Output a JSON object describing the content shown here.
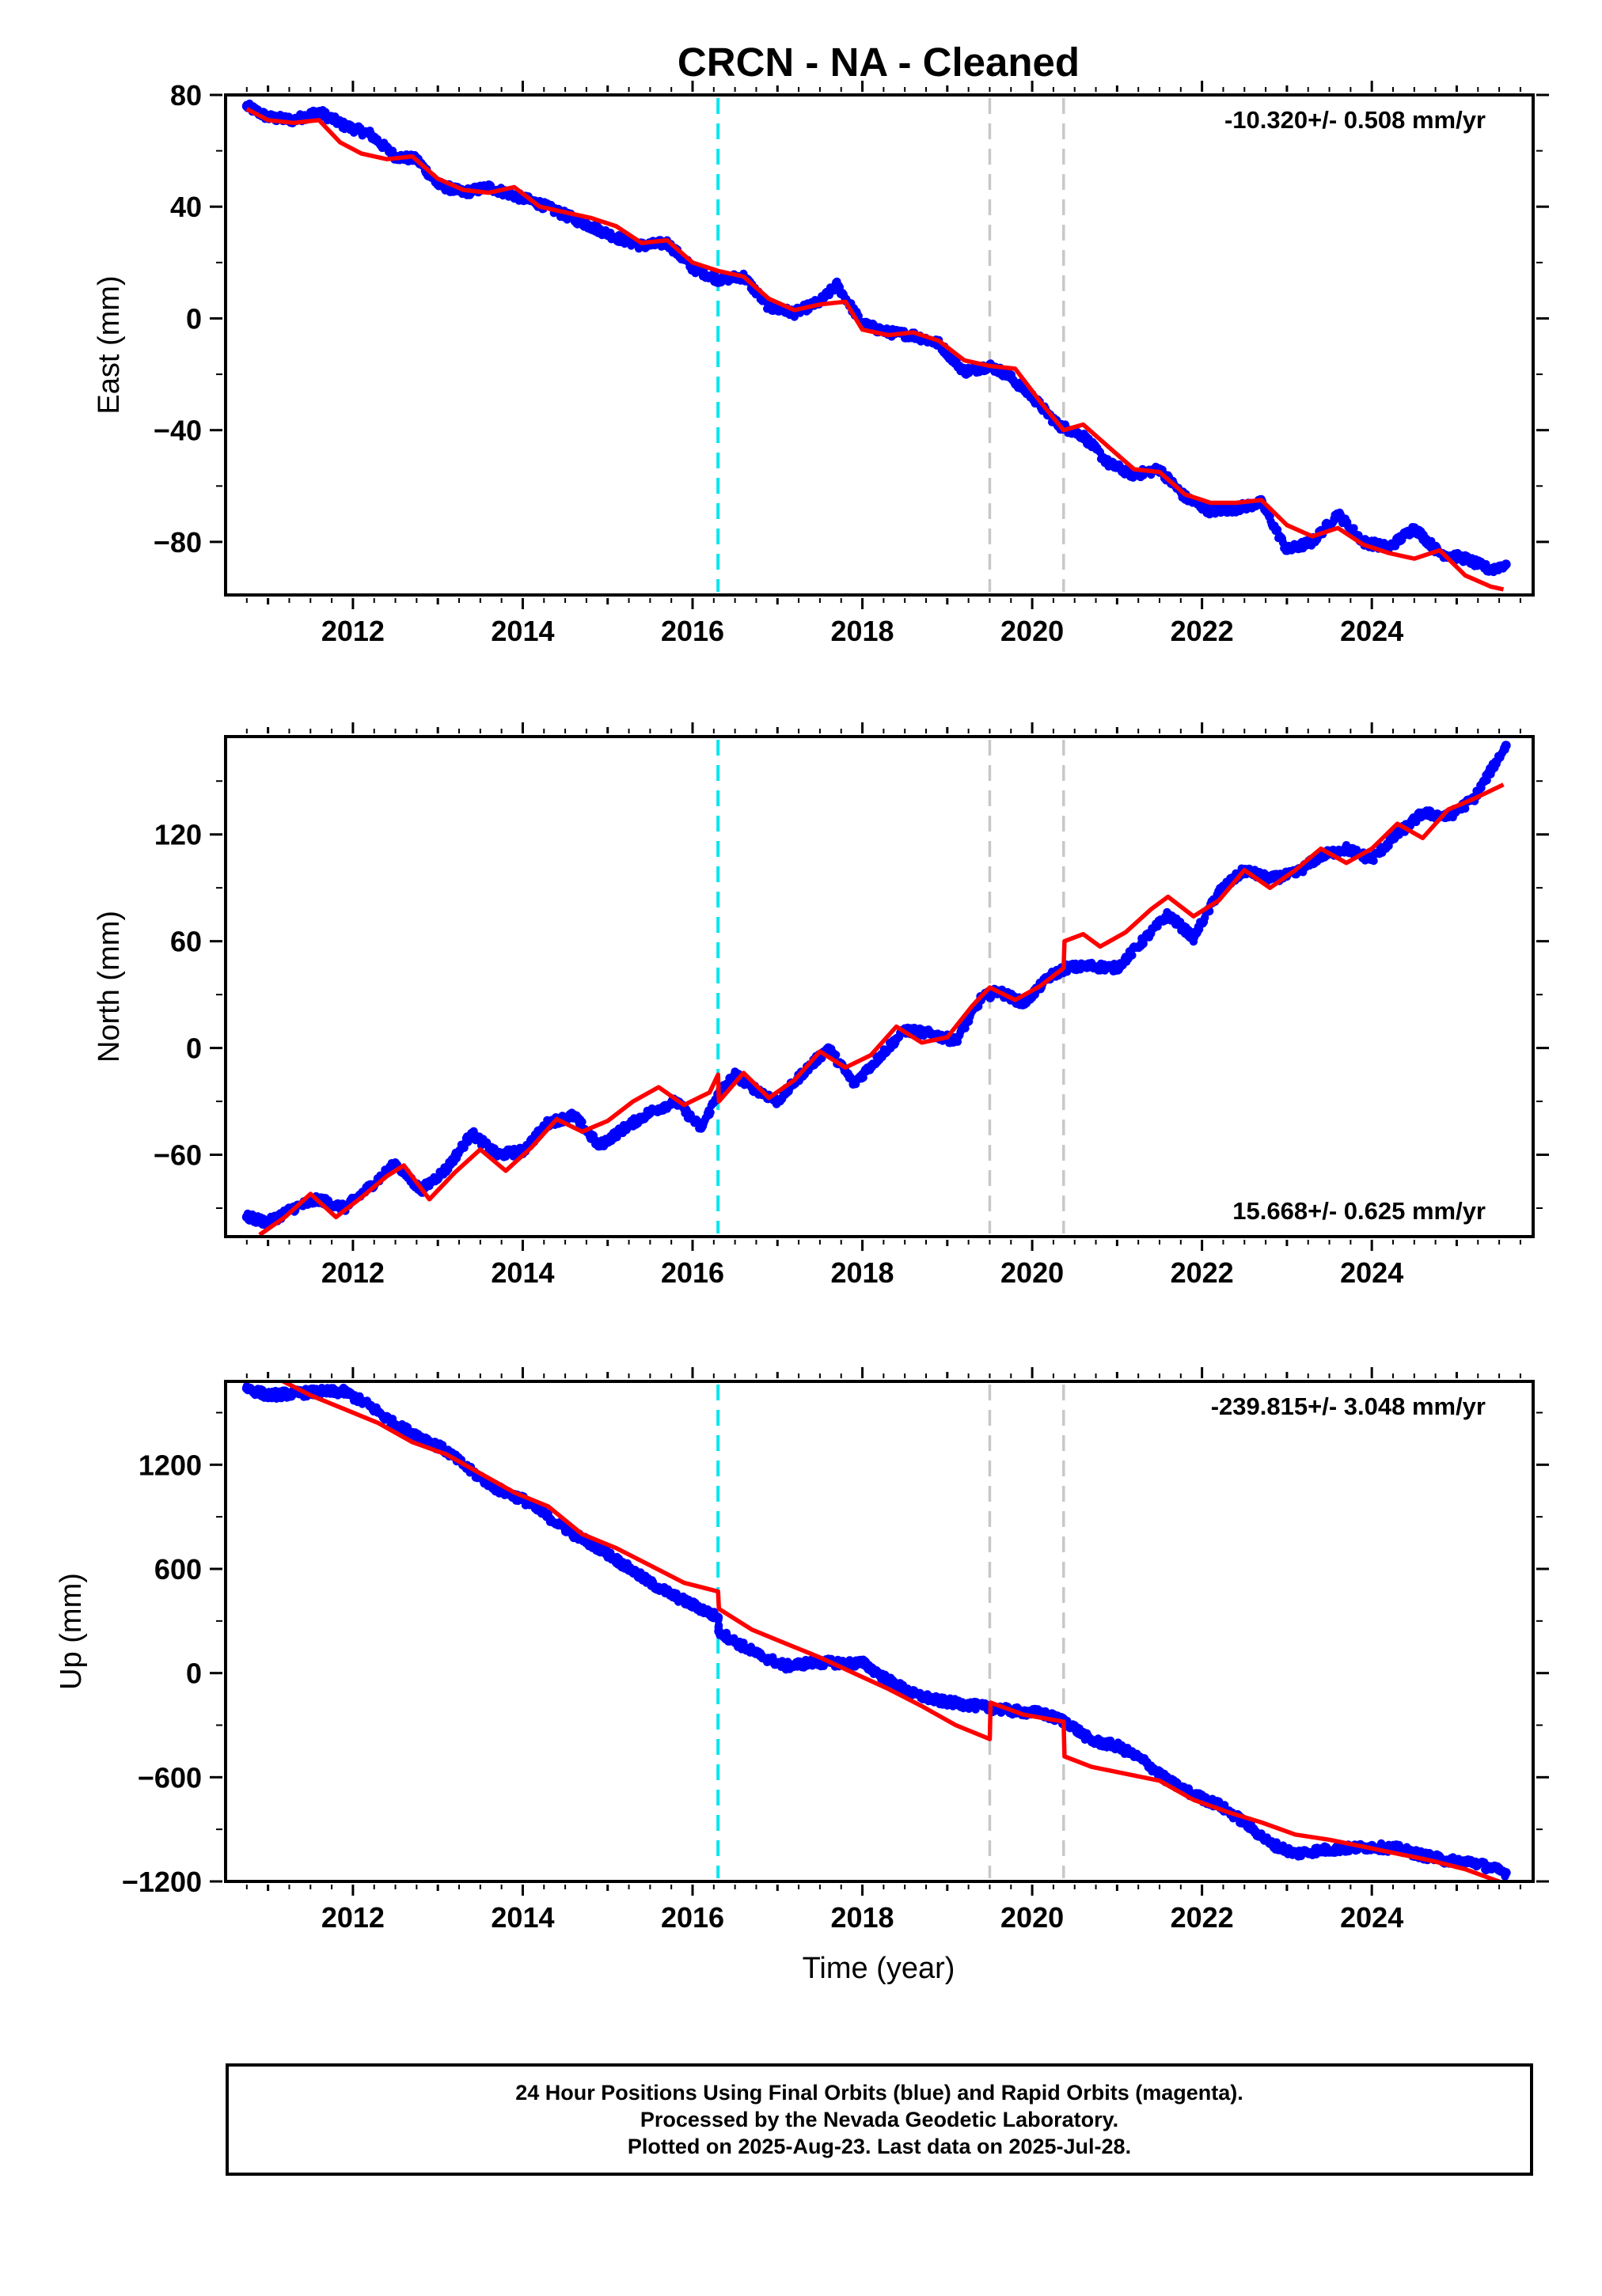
{
  "title": "CRCN  - NA - Cleaned",
  "xlabel": "Time (year)",
  "footer": {
    "line1": "24 Hour Positions Using Final Orbits (blue) and Rapid Orbits (magenta).",
    "line2": "Processed by the Nevada Geodetic Laboratory.",
    "line3": "Plotted on 2025-Aug-23. Last data on 2025-Jul-28."
  },
  "colors": {
    "data": "#0000ff",
    "model": "#ff0000",
    "antenna_change": "#00e5ee",
    "equipment_change": "#c8c8c8"
  },
  "chart_data": [
    {
      "type": "scatter",
      "component": "East",
      "ylabel": "East (mm)",
      "rate_label": "-10.320+/- 0.508 mm/yr",
      "xlim": [
        2010.5,
        2025.9
      ],
      "ylim": [
        -99,
        80
      ],
      "xticks": [
        "2012",
        "2014",
        "2016",
        "2018",
        "2020",
        "2022",
        "2024"
      ],
      "yticks": [
        "80",
        "40",
        "0",
        "−40",
        "−80"
      ],
      "ytick_values": [
        80,
        40,
        0,
        -40,
        -80
      ],
      "vlines": [
        {
          "x": 2016.3,
          "kind": "antenna_change"
        },
        {
          "x": 2019.5,
          "kind": "equipment_change"
        },
        {
          "x": 2020.37,
          "kind": "equipment_change"
        }
      ],
      "series": [
        {
          "role": "data",
          "x": [
            2010.75,
            2011.0,
            2011.3,
            2011.6,
            2011.9,
            2012.2,
            2012.5,
            2012.75,
            2013.0,
            2013.3,
            2013.6,
            2013.9,
            2014.2,
            2014.5,
            2014.8,
            2015.1,
            2015.4,
            2015.7,
            2016.0,
            2016.3,
            2016.6,
            2016.9,
            2017.2,
            2017.5,
            2017.7,
            2018.0,
            2018.3,
            2018.6,
            2018.9,
            2019.2,
            2019.5,
            2019.7,
            2020.0,
            2020.3,
            2020.6,
            2020.9,
            2021.2,
            2021.5,
            2021.8,
            2022.1,
            2022.4,
            2022.7,
            2023.0,
            2023.3,
            2023.6,
            2023.9,
            2024.2,
            2024.5,
            2024.8,
            2025.1,
            2025.4,
            2025.58
          ],
          "y": [
            76,
            72,
            71,
            74,
            69,
            66,
            58,
            57,
            48,
            45,
            47,
            44,
            41,
            37,
            33,
            29,
            26,
            27,
            18,
            14,
            15,
            4,
            2,
            6,
            12,
            -2,
            -5,
            -6,
            -9,
            -19,
            -17,
            -20,
            -28,
            -38,
            -42,
            -52,
            -56,
            -54,
            -64,
            -69,
            -68,
            -66,
            -83,
            -80,
            -70,
            -80,
            -82,
            -75,
            -84,
            -86,
            -90,
            -88
          ]
        },
        {
          "role": "model",
          "x": [
            2010.75,
            2011.0,
            2011.3,
            2011.6,
            2011.85,
            2012.1,
            2012.4,
            2012.7,
            2013.0,
            2013.3,
            2013.6,
            2013.9,
            2014.2,
            2014.5,
            2014.8,
            2015.1,
            2015.4,
            2015.7,
            2016.0,
            2016.3,
            2016.6,
            2016.9,
            2017.2,
            2017.5,
            2017.8,
            2018.0,
            2018.3,
            2018.6,
            2018.9,
            2019.2,
            2019.5,
            2019.8,
            2020.1,
            2020.37,
            2020.6,
            2020.9,
            2021.2,
            2021.5,
            2021.8,
            2022.1,
            2022.4,
            2022.7,
            2023.0,
            2023.3,
            2023.6,
            2023.9,
            2024.2,
            2024.5,
            2024.8,
            2025.1,
            2025.4,
            2025.55
          ],
          "y": [
            75,
            71,
            70,
            71,
            63,
            59,
            57,
            58,
            50,
            46,
            45,
            47,
            40,
            38,
            36,
            33,
            27,
            28,
            20,
            17,
            15,
            7,
            3,
            5,
            6,
            -4,
            -6,
            -5,
            -8,
            -15,
            -17,
            -18,
            -30,
            -40,
            -38,
            -46,
            -54,
            -55,
            -63,
            -66,
            -66,
            -65,
            -74,
            -78,
            -75,
            -81,
            -84,
            -86,
            -83,
            -92,
            -96,
            -97
          ]
        }
      ]
    },
    {
      "type": "scatter",
      "component": "North",
      "ylabel": "North (mm)",
      "rate_label": "15.668+/- 0.625 mm/yr",
      "xlim": [
        2010.5,
        2025.9
      ],
      "ylim": [
        -106,
        175
      ],
      "xticks": [
        "2012",
        "2014",
        "2016",
        "2018",
        "2020",
        "2022",
        "2024"
      ],
      "yticks": [
        "120",
        "60",
        "0",
        "−60"
      ],
      "ytick_values": [
        120,
        60,
        0,
        -60
      ],
      "vlines": [
        {
          "x": 2016.3,
          "kind": "antenna_change"
        },
        {
          "x": 2019.5,
          "kind": "equipment_change"
        },
        {
          "x": 2020.37,
          "kind": "equipment_change"
        }
      ],
      "series": [
        {
          "role": "data",
          "x": [
            2010.75,
            2011.0,
            2011.3,
            2011.6,
            2011.9,
            2012.2,
            2012.5,
            2012.8,
            2013.1,
            2013.4,
            2013.7,
            2014.0,
            2014.3,
            2014.6,
            2014.9,
            2015.2,
            2015.5,
            2015.8,
            2016.1,
            2016.3,
            2016.5,
            2016.7,
            2017.0,
            2017.3,
            2017.6,
            2017.9,
            2018.2,
            2018.5,
            2018.8,
            2019.1,
            2019.4,
            2019.6,
            2019.9,
            2020.2,
            2020.4,
            2020.7,
            2021.0,
            2021.3,
            2021.6,
            2021.9,
            2022.2,
            2022.5,
            2022.8,
            2023.1,
            2023.4,
            2023.7,
            2024.0,
            2024.3,
            2024.6,
            2024.9,
            2025.2,
            2025.58
          ],
          "y": [
            -95,
            -98,
            -90,
            -85,
            -90,
            -78,
            -65,
            -80,
            -68,
            -48,
            -60,
            -58,
            -42,
            -38,
            -55,
            -45,
            -36,
            -30,
            -45,
            -26,
            -15,
            -22,
            -30,
            -14,
            0,
            -20,
            -5,
            10,
            8,
            4,
            28,
            32,
            25,
            40,
            45,
            46,
            45,
            60,
            75,
            62,
            88,
            100,
            95,
            98,
            108,
            112,
            106,
            120,
            132,
            130,
            140,
            170
          ]
        },
        {
          "role": "model",
          "x": [
            2010.9,
            2011.2,
            2011.5,
            2011.8,
            2012.1,
            2012.4,
            2012.6,
            2012.9,
            2013.2,
            2013.5,
            2013.8,
            2014.1,
            2014.4,
            2014.7,
            2015.0,
            2015.3,
            2015.6,
            2015.9,
            2016.2,
            2016.3,
            2016.31,
            2016.6,
            2016.9,
            2017.2,
            2017.5,
            2017.8,
            2018.1,
            2018.4,
            2018.7,
            2019.0,
            2019.3,
            2019.5,
            2019.8,
            2020.1,
            2020.37,
            2020.38,
            2020.6,
            2020.8,
            2021.1,
            2021.4,
            2021.6,
            2021.9,
            2022.2,
            2022.5,
            2022.8,
            2023.1,
            2023.4,
            2023.7,
            2024.0,
            2024.3,
            2024.6,
            2024.9,
            2025.2,
            2025.55
          ],
          "y": [
            -105,
            -95,
            -82,
            -95,
            -84,
            -72,
            -66,
            -85,
            -70,
            -57,
            -69,
            -56,
            -40,
            -47,
            -41,
            -30,
            -22,
            -32,
            -25,
            -15,
            -30,
            -14,
            -28,
            -18,
            -2,
            -11,
            -4,
            12,
            3,
            6,
            24,
            34,
            27,
            35,
            45,
            60,
            64,
            57,
            65,
            78,
            85,
            74,
            83,
            100,
            90,
            100,
            112,
            104,
            112,
            126,
            118,
            134,
            140,
            148
          ]
        }
      ]
    },
    {
      "type": "scatter",
      "component": "Up",
      "ylabel": "Up (mm)",
      "rate_label": "-239.815+/- 3.048 mm/yr",
      "xlim": [
        2010.5,
        2025.9
      ],
      "ylim": [
        -1200,
        1680
      ],
      "xticks": [
        "2012",
        "2014",
        "2016",
        "2018",
        "2020",
        "2022",
        "2024"
      ],
      "yticks": [
        "1200",
        "600",
        "0",
        "−600",
        "−1200"
      ],
      "ytick_values": [
        1200,
        600,
        0,
        -600,
        -1200
      ],
      "vlines": [
        {
          "x": 2016.3,
          "kind": "antenna_change"
        },
        {
          "x": 2019.5,
          "kind": "equipment_change"
        },
        {
          "x": 2020.37,
          "kind": "equipment_change"
        }
      ],
      "series": [
        {
          "role": "data",
          "x": [
            2010.75,
            2011.0,
            2011.3,
            2011.6,
            2011.9,
            2012.2,
            2012.5,
            2012.8,
            2013.1,
            2013.4,
            2013.7,
            2014.0,
            2014.3,
            2014.6,
            2014.9,
            2015.2,
            2015.5,
            2015.8,
            2016.1,
            2016.3,
            2016.31,
            2016.5,
            2016.8,
            2017.1,
            2017.4,
            2017.7,
            2017.85,
            2018.0,
            2018.3,
            2018.6,
            2018.9,
            2019.2,
            2019.5,
            2019.8,
            2020.1,
            2020.4,
            2020.7,
            2021.0,
            2021.3,
            2021.6,
            2021.9,
            2022.2,
            2022.5,
            2022.8,
            2023.1,
            2023.4,
            2023.7,
            2024.0,
            2024.3,
            2024.6,
            2024.9,
            2025.2,
            2025.58
          ],
          "y": [
            1640,
            1600,
            1610,
            1620,
            1620,
            1540,
            1430,
            1360,
            1280,
            1160,
            1060,
            1000,
            900,
            800,
            720,
            620,
            520,
            440,
            370,
            320,
            240,
            180,
            100,
            40,
            60,
            60,
            55,
            60,
            -40,
            -120,
            -160,
            -180,
            -200,
            -220,
            -230,
            -280,
            -390,
            -420,
            -500,
            -620,
            -700,
            -760,
            -860,
            -980,
            -1040,
            -1020,
            -1010,
            -1000,
            -1010,
            -1050,
            -1080,
            -1090,
            -1150
          ]
        },
        {
          "role": "model",
          "x": [
            2011.1,
            2011.5,
            2011.9,
            2012.3,
            2012.7,
            2013.1,
            2013.5,
            2013.9,
            2014.3,
            2014.7,
            2015.1,
            2015.5,
            2015.9,
            2016.3,
            2016.31,
            2016.7,
            2017.1,
            2017.5,
            2017.9,
            2018.3,
            2018.7,
            2019.1,
            2019.5,
            2019.51,
            2019.9,
            2020.37,
            2020.38,
            2020.7,
            2021.1,
            2021.5,
            2021.9,
            2022.3,
            2022.7,
            2023.1,
            2023.5,
            2023.9,
            2024.3,
            2024.7,
            2025.1,
            2025.55
          ],
          "y": [
            1700,
            1600,
            1520,
            1440,
            1330,
            1260,
            1150,
            1040,
            960,
            800,
            720,
            620,
            520,
            470,
            370,
            250,
            170,
            90,
            0,
            -90,
            -190,
            -300,
            -380,
            -170,
            -240,
            -280,
            -480,
            -540,
            -580,
            -620,
            -730,
            -800,
            -860,
            -930,
            -960,
            -1000,
            -1040,
            -1080,
            -1130,
            -1210
          ]
        }
      ]
    }
  ]
}
